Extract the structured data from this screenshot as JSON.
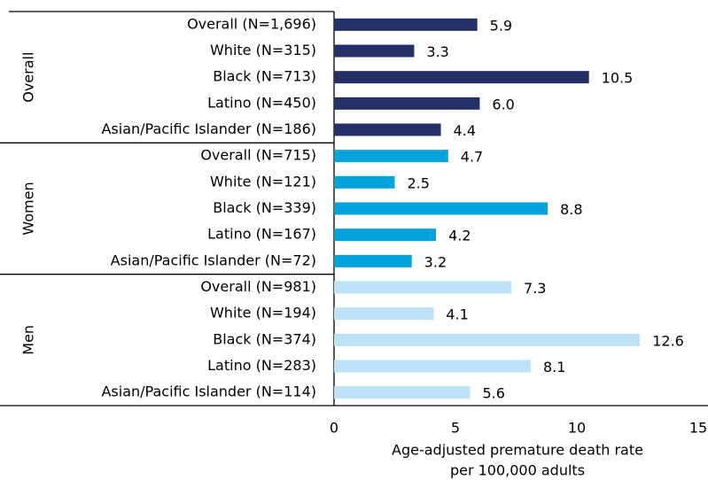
{
  "chart_data": {
    "type": "bar",
    "orientation": "horizontal",
    "groups": [
      {
        "name": "Overall",
        "color": "#253066",
        "categories": [
          "Overall (N=1,696)",
          "White (N=315)",
          "Black (N=713)",
          "Latino (N=450)",
          "Asian/Pacific Islander (N=186)"
        ],
        "values": [
          5.9,
          3.3,
          10.5,
          6.0,
          4.4
        ],
        "value_labels": [
          "5.9",
          "3.3",
          "10.5",
          "6.0",
          "4.4"
        ]
      },
      {
        "name": "Women",
        "color": "#00a3dc",
        "categories": [
          "Overall (N=715)",
          "White (N=121)",
          "Black (N=339)",
          "Latino (N=167)",
          "Asian/Pacific Islander (N=72)"
        ],
        "values": [
          4.7,
          2.5,
          8.8,
          4.2,
          3.2
        ],
        "value_labels": [
          "4.7",
          "2.5",
          "8.8",
          "4.2",
          "3.2"
        ]
      },
      {
        "name": "Men",
        "color": "#bde1f6",
        "categories": [
          "Overall (N=981)",
          "White (N=194)",
          "Black (N=374)",
          "Latino (N=283)",
          "Asian/Pacific Islander (N=114)"
        ],
        "values": [
          7.3,
          4.1,
          12.6,
          8.1,
          5.6
        ],
        "value_labels": [
          "7.3",
          "4.1",
          "12.6",
          "8.1",
          "5.6"
        ]
      }
    ],
    "xlabel": [
      "Age-adjusted premature death rate",
      "per 100,000 adults"
    ],
    "xlim": [
      0,
      15
    ],
    "xticks": [
      0,
      5,
      10,
      15
    ],
    "grid": false
  }
}
